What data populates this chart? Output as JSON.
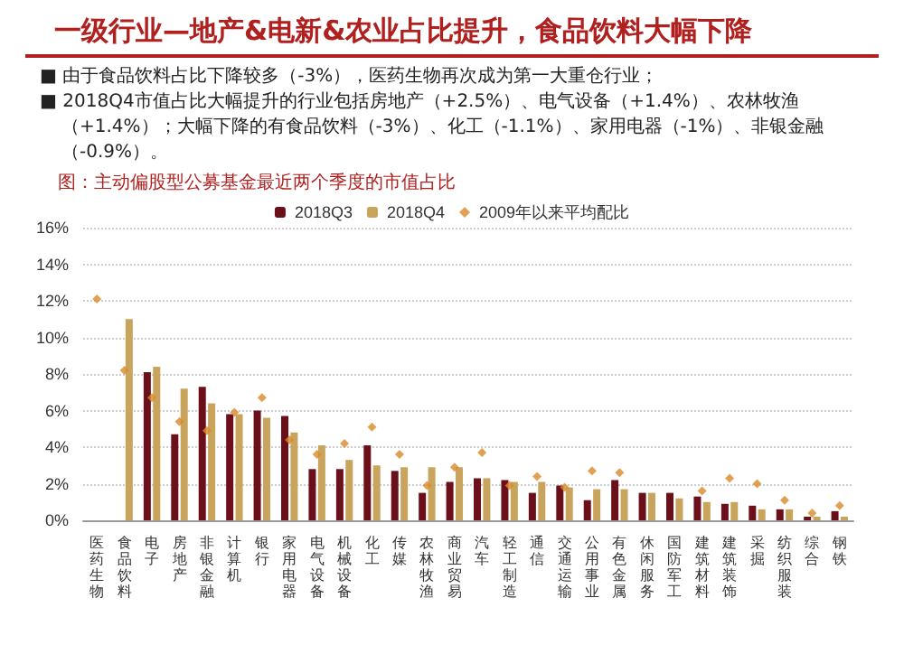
{
  "chart_data": {
    "type": "bar",
    "title": "一级行业—地产&电新&农业占比提升，食品饮料大幅下降",
    "subtitle": "图：主动偏股型公募基金最近两个季度的市值占比",
    "annotations": [
      "■ 由于食品饮料占比下降较多（-3%），医药生物再次成为第一大重仓行业；",
      "■ 2018Q4市值占比大幅提升的行业包括房地产（+2.5%）、电气设备（+1.4%）、农林牧渔（+1.4%）；大幅下降的有食品饮料（-3%）、化工（-1.1%）、家用电器（-1%）、非银金融（-0.9%）。"
    ],
    "categories": [
      "医药生物",
      "食品饮料",
      "电子",
      "房地产",
      "非银金融",
      "计算机",
      "银行",
      "家用电器",
      "电气设备",
      "机械设备",
      "化工",
      "传媒",
      "农林牧渔",
      "商业贸易",
      "汽车",
      "轻工制造",
      "通信",
      "交通运输",
      "公用事业",
      "有色金属",
      "休闲服务",
      "国防军工",
      "建筑材料",
      "建筑装饰",
      "采掘",
      "纺织服装",
      "综合",
      "钢铁"
    ],
    "series": [
      {
        "name": "2018Q3",
        "color": "#6b0f1a",
        "values": [
          null,
          null,
          8.1,
          4.7,
          7.3,
          5.8,
          6.0,
          5.7,
          2.8,
          2.8,
          4.1,
          2.7,
          1.5,
          2.1,
          2.3,
          2.2,
          1.5,
          1.9,
          1.1,
          2.2,
          1.5,
          1.5,
          1.3,
          0.9,
          0.8,
          0.6,
          0.2,
          0.5
        ]
      },
      {
        "name": "2018Q4",
        "color": "#c9a45c",
        "values": [
          null,
          11.0,
          8.4,
          7.2,
          6.4,
          5.8,
          5.6,
          4.8,
          4.1,
          3.3,
          3.0,
          2.9,
          2.9,
          2.9,
          2.3,
          2.1,
          2.1,
          1.8,
          1.7,
          1.7,
          1.5,
          1.2,
          1.0,
          1.0,
          0.6,
          0.6,
          0.2,
          0.2
        ]
      },
      {
        "name": "2009年以来平均配比",
        "type": "scatter",
        "marker": "diamond",
        "color": "#d9892b",
        "values": [
          12.1,
          8.2,
          6.7,
          5.4,
          4.9,
          5.9,
          6.7,
          4.4,
          3.6,
          4.2,
          5.1,
          3.6,
          1.9,
          2.9,
          3.7,
          1.9,
          2.4,
          1.8,
          2.7,
          2.6,
          null,
          null,
          1.6,
          2.3,
          2.0,
          1.1,
          0.4,
          0.8
        ]
      }
    ],
    "ylim": [
      0,
      16
    ],
    "yticks": [
      {
        "value": 0,
        "label": "0%"
      },
      {
        "value": 2,
        "label": "2%"
      },
      {
        "value": 4,
        "label": "4%"
      },
      {
        "value": 6,
        "label": "6%"
      },
      {
        "value": 8,
        "label": "8%"
      },
      {
        "value": 10,
        "label": "10%"
      },
      {
        "value": 12,
        "label": "12%"
      },
      {
        "value": 14,
        "label": "14%"
      },
      {
        "value": 16,
        "label": "16%"
      }
    ],
    "grid": "y",
    "legend": "top"
  }
}
